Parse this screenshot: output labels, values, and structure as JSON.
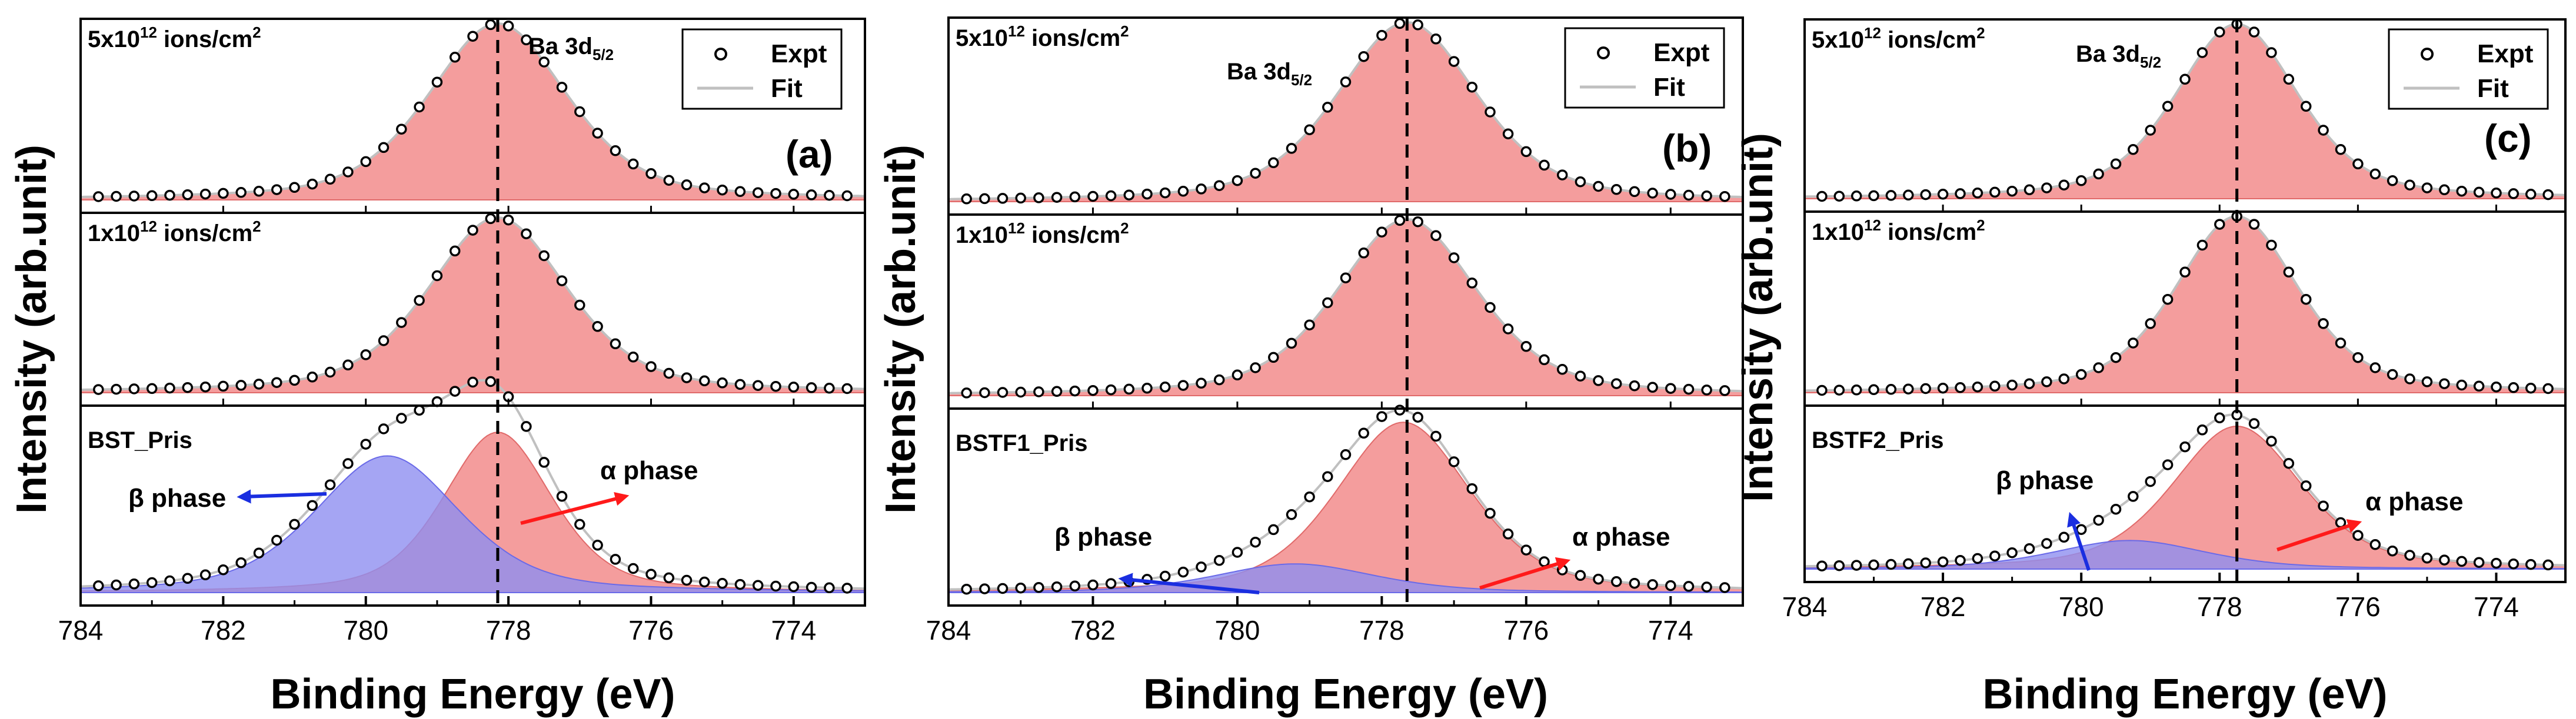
{
  "figure": {
    "ylabel": "Intensity (arb.unit)",
    "xlabel": "Binding Energy (eV)",
    "legend": {
      "expt": "Expt",
      "fit": "Fit"
    },
    "sublevel_label": "Ba 3d",
    "sublevel_sub": "5/2",
    "fluence_high": "5x10",
    "fluence_low": "1x10",
    "fluence_exp": "12",
    "fluence_unit": " ions/cm",
    "fluence_unit_exp": "2",
    "alpha_label": "α phase",
    "beta_label": "β phase"
  },
  "colors": {
    "alpha_fill": "#f28c8c",
    "beta_fill": "#8f8ff0",
    "alpha_arrow": "#ff1a1a",
    "beta_arrow": "#1a2ee0",
    "fit_line": "#c0c0c0",
    "axis": "#000000"
  },
  "chart_data": [
    {
      "type": "line",
      "panel": "(a)",
      "sample": "BST_Pris",
      "xlim": [
        784,
        773
      ],
      "xticks": [
        784,
        782,
        780,
        778,
        776,
        774
      ],
      "ref_line": 778.15,
      "series": [
        {
          "name": "5x10^12 ions/cm^2",
          "components": [
            {
              "phase": "alpha",
              "center": 778.15,
              "height": 1.0,
              "fwhm": 2.3
            }
          ]
        },
        {
          "name": "1x10^12 ions/cm^2",
          "components": [
            {
              "phase": "alpha",
              "center": 778.15,
              "height": 1.0,
              "fwhm": 2.3
            }
          ]
        },
        {
          "name": "BST_Pris",
          "components": [
            {
              "phase": "alpha",
              "center": 778.15,
              "height": 0.88,
              "fwhm": 1.8
            },
            {
              "phase": "beta",
              "center": 779.7,
              "height": 0.75,
              "fwhm": 2.4
            }
          ]
        }
      ]
    },
    {
      "type": "line",
      "panel": "(b)",
      "sample": "BSTF1_Pris",
      "xlim": [
        784,
        773
      ],
      "xticks": [
        784,
        782,
        780,
        778,
        776,
        774
      ],
      "ref_line": 777.65,
      "series": [
        {
          "name": "5x10^12 ions/cm^2",
          "components": [
            {
              "phase": "alpha",
              "center": 777.65,
              "height": 1.0,
              "fwhm": 2.3
            }
          ]
        },
        {
          "name": "1x10^12 ions/cm^2",
          "components": [
            {
              "phase": "alpha",
              "center": 777.65,
              "height": 1.0,
              "fwhm": 2.3
            }
          ]
        },
        {
          "name": "BSTF1_Pris",
          "components": [
            {
              "phase": "alpha",
              "center": 777.7,
              "height": 0.95,
              "fwhm": 2.2
            },
            {
              "phase": "beta",
              "center": 779.2,
              "height": 0.16,
              "fwhm": 2.6
            }
          ]
        }
      ]
    },
    {
      "type": "line",
      "panel": "(c)",
      "sample": "BSTF2_Pris",
      "xlim": [
        784,
        773
      ],
      "xticks": [
        784,
        782,
        780,
        778,
        776,
        774
      ],
      "ref_line": 777.75,
      "series": [
        {
          "name": "5x10^12 ions/cm^2",
          "components": [
            {
              "phase": "alpha",
              "center": 777.75,
              "height": 1.0,
              "fwhm": 2.1
            }
          ]
        },
        {
          "name": "1x10^12 ions/cm^2",
          "components": [
            {
              "phase": "alpha",
              "center": 777.75,
              "height": 1.0,
              "fwhm": 2.1
            }
          ]
        },
        {
          "name": "BSTF2_Pris",
          "components": [
            {
              "phase": "alpha",
              "center": 777.75,
              "height": 0.9,
              "fwhm": 2.2
            },
            {
              "phase": "beta",
              "center": 779.3,
              "height": 0.18,
              "fwhm": 2.6
            }
          ]
        }
      ]
    }
  ]
}
